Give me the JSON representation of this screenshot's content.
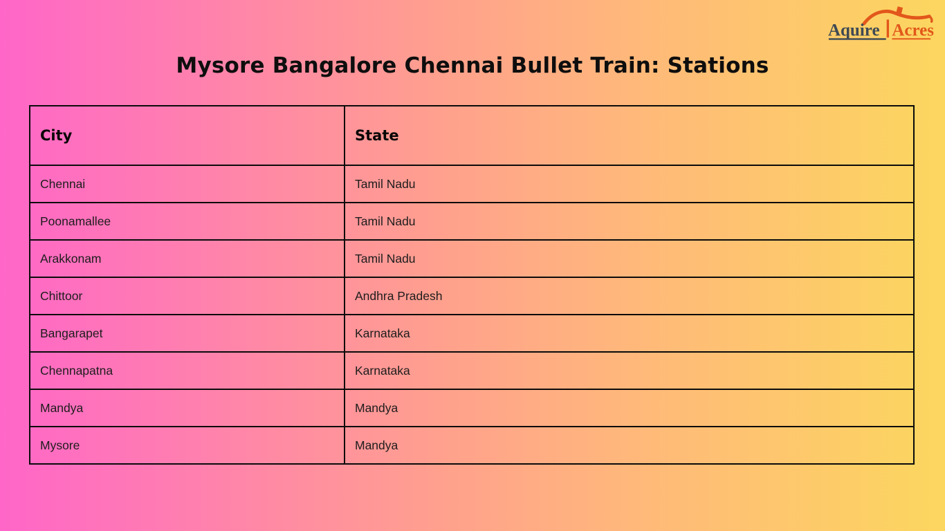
{
  "page": {
    "title": "Mysore Bangalore Chennai Bullet Train: Stations",
    "background": {
      "gradient_left": "#ff66c8",
      "gradient_mid": "#ffa28c",
      "gradient_mid2": "#ffb77b",
      "gradient_right": "#fcd75f"
    }
  },
  "logo": {
    "brand_part1": "Aquire",
    "brand_part2": "Acres",
    "part1_color": "#3e4a54",
    "part2_color": "#e2571b"
  },
  "table": {
    "border_color": "#0b0b0b",
    "headers": [
      "City",
      "State"
    ],
    "rows": [
      [
        "Chennai",
        "Tamil Nadu"
      ],
      [
        "Poonamallee",
        "Tamil Nadu"
      ],
      [
        "Arakkonam",
        "Tamil Nadu"
      ],
      [
        "Chittoor",
        "Andhra Pradesh"
      ],
      [
        "Bangarapet",
        "Karnataka"
      ],
      [
        "Chennapatna",
        "Karnataka"
      ],
      [
        "Mandya",
        "Mandya"
      ],
      [
        "Mysore",
        "Mandya"
      ]
    ]
  },
  "chart_data": {
    "type": "table",
    "title": "Mysore Bangalore Chennai Bullet Train: Stations",
    "columns": [
      "City",
      "State"
    ],
    "rows": [
      [
        "Chennai",
        "Tamil Nadu"
      ],
      [
        "Poonamallee",
        "Tamil Nadu"
      ],
      [
        "Arakkonam",
        "Tamil Nadu"
      ],
      [
        "Chittoor",
        "Andhra Pradesh"
      ],
      [
        "Bangarapet",
        "Karnataka"
      ],
      [
        "Chennapatna",
        "Karnataka"
      ],
      [
        "Mandya",
        "Mandya"
      ],
      [
        "Mysore",
        "Mandya"
      ]
    ]
  }
}
